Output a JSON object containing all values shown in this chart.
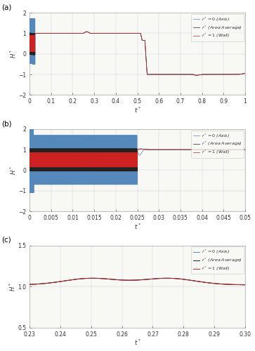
{
  "fig_width": 3.63,
  "fig_height": 5.0,
  "dpi": 100,
  "bg_color": "#ffffff",
  "plot_bg": "#f8f8f5",
  "colors": {
    "axis": "#5588bb",
    "area_avg": "#222222",
    "wall": "#cc2222"
  },
  "legend_labels": [
    "$r^* = 0$ (Axis)",
    "$r^*$ (Area Average)",
    "$r^* = 1$ (Wall)"
  ],
  "panel_a": {
    "xlim": [
      0,
      1
    ],
    "ylim": [
      -2,
      2
    ],
    "xlabel": "$t^*$",
    "ylabel": "$H^*$",
    "xticks": [
      0,
      0.1,
      0.2,
      0.3,
      0.4,
      0.5,
      0.6,
      0.7,
      0.8,
      0.9,
      1.0
    ],
    "yticks": [
      -2,
      -1,
      0,
      1,
      2
    ]
  },
  "panel_b": {
    "xlim": [
      0,
      0.05
    ],
    "ylim": [
      -2,
      2
    ],
    "xlabel": "$t^*$",
    "ylabel": "$H^*$",
    "xticks": [
      0,
      0.005,
      0.01,
      0.015,
      0.02,
      0.025,
      0.03,
      0.035,
      0.04,
      0.045,
      0.05
    ],
    "yticks": [
      -2,
      -1,
      0,
      1,
      2
    ]
  },
  "panel_c": {
    "xlim": [
      0.23,
      0.3
    ],
    "ylim": [
      0.5,
      1.5
    ],
    "xlabel": "$t^*$",
    "ylabel": "$H^*$",
    "xticks": [
      0.23,
      0.24,
      0.25,
      0.26,
      0.27,
      0.28,
      0.29,
      0.3
    ],
    "yticks": [
      0.5,
      1.0,
      1.5
    ]
  }
}
